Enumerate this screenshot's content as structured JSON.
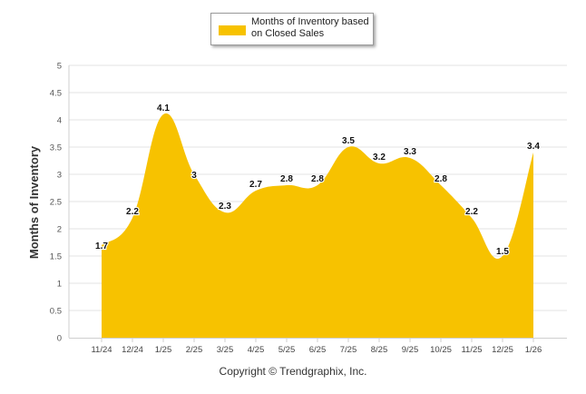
{
  "chart_data": {
    "type": "area",
    "categories": [
      "11/24",
      "12/24",
      "1/25",
      "2/25",
      "3/25",
      "4/25",
      "5/25",
      "6/25",
      "7/25",
      "8/25",
      "9/25",
      "10/25",
      "11/25",
      "12/25",
      "1/26"
    ],
    "values": [
      1.7,
      2.2,
      4.1,
      3,
      2.3,
      2.7,
      2.8,
      2.8,
      3.5,
      3.2,
      3.3,
      2.8,
      2.2,
      1.5,
      3.4
    ],
    "data_labels": [
      "1.7",
      "2.2",
      "4.1",
      "3",
      "2.3",
      "2.7",
      "2.8",
      "2.8",
      "3.5",
      "3.2",
      "3.3",
      "2.8",
      "2.2",
      "1.5",
      "3.4"
    ],
    "title": "",
    "xlabel": "",
    "ylabel": "Months of Inventory",
    "ylim": [
      0,
      5
    ],
    "yticks": [
      "0",
      "0.5",
      "1",
      "1.5",
      "2",
      "2.5",
      "3",
      "3.5",
      "4",
      "4.5",
      "5"
    ],
    "grid": true,
    "legend": {
      "position": "top-center",
      "entries": [
        "Months of Inventory based on Closed Sales"
      ]
    },
    "series_color": "#f7c200",
    "copyright": "Copyright © Trendgraphix, Inc."
  }
}
